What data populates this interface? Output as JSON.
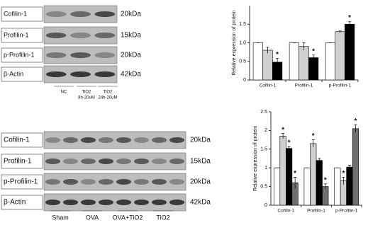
{
  "blots": [
    {
      "rows": [
        {
          "label": "Cofilin-1",
          "kda": "20kDa"
        },
        {
          "label": "Profilin-1",
          "kda": "15kDa"
        },
        {
          "label": "p-Profilin-1",
          "kda": "20kDa"
        },
        {
          "label": "β-Actin",
          "kda": "42kDa"
        }
      ],
      "lanes": [
        [
          "NC"
        ],
        [
          "TiO2",
          "8h-20uM"
        ],
        [
          "TiO2",
          "24h-20uM"
        ]
      ]
    },
    {
      "rows": [
        {
          "label": "Cofilin-1",
          "kda": "20kDa"
        },
        {
          "label": "Profilin-1",
          "kda": "15kDa"
        },
        {
          "label": "p-Profilin-1",
          "kda": "20kDa"
        },
        {
          "label": "β-Actin",
          "kda": "42kDa"
        }
      ],
      "lanes": [
        [
          "Sham"
        ],
        [
          "OVA"
        ],
        [
          "OVA+TiO2"
        ],
        [
          "TiO2"
        ]
      ]
    }
  ],
  "chart_data": [
    {
      "type": "bar",
      "y_label": "Relative expression of protein",
      "categories": [
        "Cofilin-1",
        "Profilin-1",
        "p-Profilin-1"
      ],
      "series": [
        {
          "color": "#ffffff",
          "values": [
            1,
            1,
            1
          ],
          "errors": [
            0,
            0,
            0
          ]
        },
        {
          "color": "#d0d0d0",
          "values": [
            0.8,
            0.9,
            1.3
          ],
          "errors": [
            0.08,
            0.1,
            0.03
          ]
        },
        {
          "color": "#000000",
          "values": [
            0.48,
            0.6,
            1.5
          ],
          "errors": [
            0.1,
            0.07,
            0.07
          ]
        }
      ],
      "significance": [
        {
          "series": 2,
          "category": 0,
          "label": "*"
        },
        {
          "series": 2,
          "category": 1,
          "label": "*"
        },
        {
          "series": 2,
          "category": 2,
          "label": "*"
        }
      ],
      "ylim": [
        0,
        2
      ],
      "yticks": [
        0,
        0.5,
        {
          "value": 1,
          "label": "1.0"
        },
        1.5
      ]
    },
    {
      "type": "bar",
      "y_label": "Relative expression of protein",
      "categories": [
        "Cofilin-1",
        "Profilin-1",
        "p-Profilin-1"
      ],
      "series": [
        {
          "color": "#ffffff",
          "values": [
            1,
            1,
            1
          ],
          "errors": [
            0,
            0,
            0
          ]
        },
        {
          "color": "#d0d0d0",
          "values": [
            1.85,
            1.65,
            0.65
          ],
          "errors": [
            0.07,
            0.1,
            0.1
          ]
        },
        {
          "color": "#000000",
          "values": [
            1.52,
            1.2,
            1.02
          ],
          "errors": [
            0.05,
            0.05,
            0.05
          ]
        },
        {
          "color": "#707070",
          "values": [
            0.6,
            0.5,
            2.05
          ],
          "errors": [
            0.15,
            0.07,
            0.1
          ]
        }
      ],
      "significance": [
        {
          "series": 1,
          "category": 0,
          "label": "*"
        },
        {
          "series": 2,
          "category": 0,
          "label": "*"
        },
        {
          "series": 3,
          "category": 0,
          "label": "*"
        },
        {
          "series": 1,
          "category": 1,
          "label": "*"
        },
        {
          "series": 3,
          "category": 1,
          "label": "*"
        },
        {
          "series": 1,
          "category": 2,
          "label": "*"
        },
        {
          "series": 3,
          "category": 2,
          "label": "*"
        }
      ],
      "ylim": [
        0,
        2.5
      ],
      "yticks": [
        0,
        0.5,
        1,
        1.5,
        2,
        2.5
      ]
    }
  ]
}
